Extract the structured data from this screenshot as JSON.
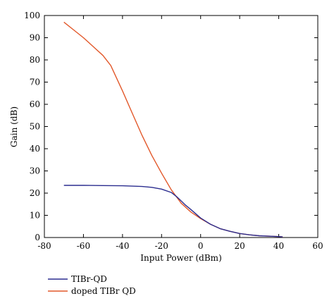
{
  "chart_data": {
    "type": "line",
    "title": "",
    "xlabel": "Input Power (dBm)",
    "ylabel": "Gain (dB)",
    "xlim": [
      -80,
      60
    ],
    "ylim": [
      0,
      100
    ],
    "xticks": [
      -80,
      -60,
      -40,
      -20,
      0,
      20,
      40,
      60
    ],
    "yticks": [
      0,
      10,
      20,
      30,
      40,
      50,
      60,
      70,
      80,
      90,
      100
    ],
    "grid": false,
    "legend_position": "bottom-left",
    "series": [
      {
        "name": "TIBr-QD",
        "color": "#2b2d8f",
        "x": [
          -70,
          -60,
          -50,
          -40,
          -30,
          -25,
          -20,
          -15,
          -12,
          -10,
          -8,
          -5,
          0,
          5,
          10,
          15,
          20,
          25,
          30,
          35,
          40,
          42
        ],
        "y": [
          23.5,
          23.5,
          23.4,
          23.3,
          23.0,
          22.6,
          21.8,
          20.3,
          18.2,
          16.5,
          14.8,
          12.6,
          8.8,
          6.0,
          4.0,
          2.8,
          1.8,
          1.2,
          0.8,
          0.6,
          0.4,
          0.3
        ]
      },
      {
        "name": "doped TIBr QD",
        "color": "#e2582a",
        "x": [
          -70,
          -65,
          -60,
          -55,
          -50,
          -46,
          -40,
          -35,
          -30,
          -25,
          -20,
          -15,
          -10,
          -5,
          0,
          5,
          10,
          15,
          20,
          25,
          30,
          35,
          40,
          42
        ],
        "y": [
          97.0,
          93.5,
          90.0,
          86.0,
          82.0,
          77.5,
          66.0,
          56.0,
          46.0,
          37.0,
          29.0,
          21.5,
          15.5,
          11.5,
          8.5,
          6.0,
          4.0,
          2.8,
          1.8,
          1.2,
          0.8,
          0.6,
          0.4,
          0.3
        ]
      }
    ]
  }
}
